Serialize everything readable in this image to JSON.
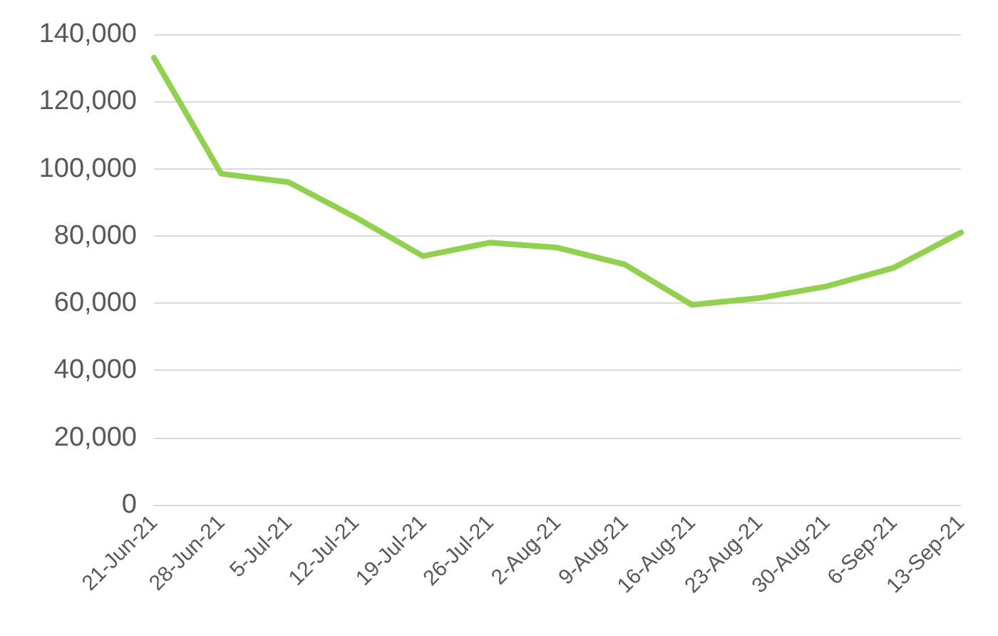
{
  "chart_data": {
    "type": "line",
    "categories": [
      "21-Jun-21",
      "28-Jun-21",
      "5-Jul-21",
      "12-Jul-21",
      "19-Jul-21",
      "26-Jul-21",
      "2-Aug-21",
      "9-Aug-21",
      "16-Aug-21",
      "23-Aug-21",
      "30-Aug-21",
      "6-Sep-21",
      "13-Sep-21"
    ],
    "series": [
      {
        "color": "#92d050",
        "values": [
          133000,
          98500,
          96000,
          85500,
          74000,
          78000,
          76500,
          71500,
          59500,
          61500,
          65000,
          70500,
          81000
        ]
      }
    ],
    "ylim": [
      0,
      140000
    ],
    "yticks": [
      0,
      {
        "value": 20000,
        "label": "20,000"
      },
      {
        "value": 40000,
        "label": "40,000"
      },
      {
        "value": 60000,
        "label": "60,000"
      },
      {
        "value": 80000,
        "label": "80,000"
      },
      {
        "value": 100000,
        "label": "100,000"
      },
      {
        "value": 120000,
        "label": "120,000"
      },
      {
        "value": 140000,
        "label": "140,000"
      }
    ],
    "grid": "y",
    "marker": "none",
    "line_style": "solid"
  }
}
